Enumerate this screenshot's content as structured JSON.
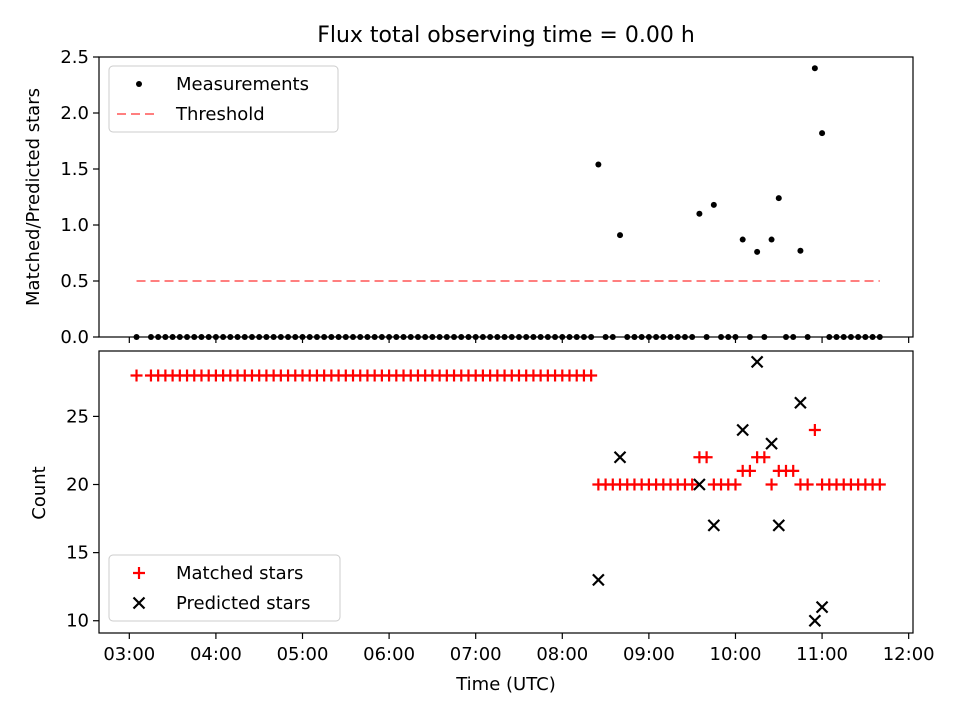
{
  "chart_data": [
    {
      "type": "scatter",
      "title": "Flux total observing time = 0.00 h",
      "xlabel": "",
      "ylabel": "Matched/Predicted stars",
      "xlim": [
        "02:39",
        "12:03"
      ],
      "ylim": [
        0,
        2.5
      ],
      "yticks": [
        "0.0",
        "0.5",
        "1.0",
        "1.5",
        "2.0",
        "2.5"
      ],
      "xtick_labels_visible": false,
      "legend": {
        "placement": "top-left",
        "entries": [
          "Measurements",
          "Threshold"
        ]
      },
      "threshold": {
        "name": "Threshold",
        "value": 0.5,
        "x_range": [
          "03:05",
          "11:40"
        ],
        "color": "#ff7f7f",
        "style": "dashed"
      },
      "series": [
        {
          "name": "Measurements",
          "color": "#000000",
          "marker": "dot",
          "points": [
            [
              "03:05",
              0
            ],
            [
              "03:15",
              0
            ],
            [
              "03:20",
              0
            ],
            [
              "03:25",
              0
            ],
            [
              "03:30",
              0
            ],
            [
              "03:35",
              0
            ],
            [
              "03:40",
              0
            ],
            [
              "03:45",
              0
            ],
            [
              "03:50",
              0
            ],
            [
              "03:55",
              0
            ],
            [
              "04:00",
              0
            ],
            [
              "04:05",
              0
            ],
            [
              "04:10",
              0
            ],
            [
              "04:15",
              0
            ],
            [
              "04:20",
              0
            ],
            [
              "04:25",
              0
            ],
            [
              "04:30",
              0
            ],
            [
              "04:35",
              0
            ],
            [
              "04:40",
              0
            ],
            [
              "04:45",
              0
            ],
            [
              "04:50",
              0
            ],
            [
              "04:55",
              0
            ],
            [
              "05:00",
              0
            ],
            [
              "05:05",
              0
            ],
            [
              "05:10",
              0
            ],
            [
              "05:15",
              0
            ],
            [
              "05:20",
              0
            ],
            [
              "05:25",
              0
            ],
            [
              "05:30",
              0
            ],
            [
              "05:35",
              0
            ],
            [
              "05:40",
              0
            ],
            [
              "05:45",
              0
            ],
            [
              "05:50",
              0
            ],
            [
              "05:55",
              0
            ],
            [
              "06:00",
              0
            ],
            [
              "06:05",
              0
            ],
            [
              "06:10",
              0
            ],
            [
              "06:15",
              0
            ],
            [
              "06:20",
              0
            ],
            [
              "06:25",
              0
            ],
            [
              "06:30",
              0
            ],
            [
              "06:35",
              0
            ],
            [
              "06:40",
              0
            ],
            [
              "06:45",
              0
            ],
            [
              "06:50",
              0
            ],
            [
              "06:55",
              0
            ],
            [
              "07:00",
              0
            ],
            [
              "07:05",
              0
            ],
            [
              "07:10",
              0
            ],
            [
              "07:15",
              0
            ],
            [
              "07:20",
              0
            ],
            [
              "07:25",
              0
            ],
            [
              "07:30",
              0
            ],
            [
              "07:35",
              0
            ],
            [
              "07:40",
              0
            ],
            [
              "07:45",
              0
            ],
            [
              "07:50",
              0
            ],
            [
              "07:55",
              0
            ],
            [
              "08:00",
              0
            ],
            [
              "08:05",
              0
            ],
            [
              "08:10",
              0
            ],
            [
              "08:15",
              0
            ],
            [
              "08:20",
              0
            ],
            [
              "08:25",
              1.54
            ],
            [
              "08:30",
              0
            ],
            [
              "08:35",
              0
            ],
            [
              "08:40",
              0.91
            ],
            [
              "08:45",
              0
            ],
            [
              "08:50",
              0
            ],
            [
              "08:55",
              0
            ],
            [
              "09:00",
              0
            ],
            [
              "09:05",
              0
            ],
            [
              "09:10",
              0
            ],
            [
              "09:15",
              0
            ],
            [
              "09:20",
              0
            ],
            [
              "09:25",
              0
            ],
            [
              "09:30",
              0
            ],
            [
              "09:35",
              1.1
            ],
            [
              "09:40",
              0
            ],
            [
              "09:45",
              1.18
            ],
            [
              "09:50",
              0
            ],
            [
              "09:55",
              0
            ],
            [
              "10:00",
              0
            ],
            [
              "10:05",
              0.87
            ],
            [
              "10:10",
              0
            ],
            [
              "10:15",
              0.76
            ],
            [
              "10:20",
              0
            ],
            [
              "10:25",
              0.87
            ],
            [
              "10:30",
              1.24
            ],
            [
              "10:35",
              0
            ],
            [
              "10:40",
              0
            ],
            [
              "10:45",
              0.77
            ],
            [
              "10:50",
              0
            ],
            [
              "10:55",
              2.4
            ],
            [
              "11:00",
              1.82
            ],
            [
              "11:05",
              0
            ],
            [
              "11:10",
              0
            ],
            [
              "11:15",
              0
            ],
            [
              "11:20",
              0
            ],
            [
              "11:25",
              0
            ],
            [
              "11:30",
              0
            ],
            [
              "11:35",
              0
            ],
            [
              "11:40",
              0
            ]
          ]
        }
      ]
    },
    {
      "type": "scatter",
      "title": "",
      "xlabel": "Time (UTC)",
      "ylabel": "Count",
      "xlim": [
        "02:39",
        "12:03"
      ],
      "ylim": [
        9.1,
        29.8
      ],
      "yticks": [
        "10",
        "15",
        "20",
        "25"
      ],
      "xticks": [
        "03:00",
        "04:00",
        "05:00",
        "06:00",
        "07:00",
        "08:00",
        "09:00",
        "10:00",
        "11:00",
        "12:00"
      ],
      "legend": {
        "placement": "bottom-left",
        "entries": [
          "Matched stars",
          "Predicted stars"
        ]
      },
      "series": [
        {
          "name": "Matched stars",
          "color": "#ff0000",
          "marker": "plus",
          "points": [
            [
              "03:05",
              28
            ],
            [
              "03:15",
              28
            ],
            [
              "03:20",
              28
            ],
            [
              "03:25",
              28
            ],
            [
              "03:30",
              28
            ],
            [
              "03:35",
              28
            ],
            [
              "03:40",
              28
            ],
            [
              "03:45",
              28
            ],
            [
              "03:50",
              28
            ],
            [
              "03:55",
              28
            ],
            [
              "04:00",
              28
            ],
            [
              "04:05",
              28
            ],
            [
              "04:10",
              28
            ],
            [
              "04:15",
              28
            ],
            [
              "04:20",
              28
            ],
            [
              "04:25",
              28
            ],
            [
              "04:30",
              28
            ],
            [
              "04:35",
              28
            ],
            [
              "04:40",
              28
            ],
            [
              "04:45",
              28
            ],
            [
              "04:50",
              28
            ],
            [
              "04:55",
              28
            ],
            [
              "05:00",
              28
            ],
            [
              "05:05",
              28
            ],
            [
              "05:10",
              28
            ],
            [
              "05:15",
              28
            ],
            [
              "05:20",
              28
            ],
            [
              "05:25",
              28
            ],
            [
              "05:30",
              28
            ],
            [
              "05:35",
              28
            ],
            [
              "05:40",
              28
            ],
            [
              "05:45",
              28
            ],
            [
              "05:50",
              28
            ],
            [
              "05:55",
              28
            ],
            [
              "06:00",
              28
            ],
            [
              "06:05",
              28
            ],
            [
              "06:10",
              28
            ],
            [
              "06:15",
              28
            ],
            [
              "06:20",
              28
            ],
            [
              "06:25",
              28
            ],
            [
              "06:30",
              28
            ],
            [
              "06:35",
              28
            ],
            [
              "06:40",
              28
            ],
            [
              "06:45",
              28
            ],
            [
              "06:50",
              28
            ],
            [
              "06:55",
              28
            ],
            [
              "07:00",
              28
            ],
            [
              "07:05",
              28
            ],
            [
              "07:10",
              28
            ],
            [
              "07:15",
              28
            ],
            [
              "07:20",
              28
            ],
            [
              "07:25",
              28
            ],
            [
              "07:30",
              28
            ],
            [
              "07:35",
              28
            ],
            [
              "07:40",
              28
            ],
            [
              "07:45",
              28
            ],
            [
              "07:50",
              28
            ],
            [
              "07:55",
              28
            ],
            [
              "08:00",
              28
            ],
            [
              "08:05",
              28
            ],
            [
              "08:10",
              28
            ],
            [
              "08:15",
              28
            ],
            [
              "08:20",
              28
            ],
            [
              "08:25",
              20
            ],
            [
              "08:30",
              20
            ],
            [
              "08:35",
              20
            ],
            [
              "08:40",
              20
            ],
            [
              "08:45",
              20
            ],
            [
              "08:50",
              20
            ],
            [
              "08:55",
              20
            ],
            [
              "09:00",
              20
            ],
            [
              "09:05",
              20
            ],
            [
              "09:10",
              20
            ],
            [
              "09:15",
              20
            ],
            [
              "09:20",
              20
            ],
            [
              "09:25",
              20
            ],
            [
              "09:30",
              20
            ],
            [
              "09:35",
              22
            ],
            [
              "09:40",
              22
            ],
            [
              "09:45",
              20
            ],
            [
              "09:50",
              20
            ],
            [
              "09:55",
              20
            ],
            [
              "10:00",
              20
            ],
            [
              "10:05",
              21
            ],
            [
              "10:10",
              21
            ],
            [
              "10:15",
              22
            ],
            [
              "10:20",
              22
            ],
            [
              "10:25",
              20
            ],
            [
              "10:30",
              21
            ],
            [
              "10:35",
              21
            ],
            [
              "10:40",
              21
            ],
            [
              "10:45",
              20
            ],
            [
              "10:50",
              20
            ],
            [
              "10:55",
              24
            ],
            [
              "11:00",
              20
            ],
            [
              "11:05",
              20
            ],
            [
              "11:10",
              20
            ],
            [
              "11:15",
              20
            ],
            [
              "11:20",
              20
            ],
            [
              "11:25",
              20
            ],
            [
              "11:30",
              20
            ],
            [
              "11:35",
              20
            ],
            [
              "11:40",
              20
            ]
          ]
        },
        {
          "name": "Predicted stars",
          "color": "#000000",
          "marker": "x",
          "points": [
            [
              "08:25",
              13
            ],
            [
              "08:40",
              22
            ],
            [
              "09:35",
              20
            ],
            [
              "09:45",
              17
            ],
            [
              "10:05",
              24
            ],
            [
              "10:15",
              29
            ],
            [
              "10:25",
              23
            ],
            [
              "10:30",
              17
            ],
            [
              "10:45",
              26
            ],
            [
              "10:55",
              10
            ],
            [
              "11:00",
              11
            ]
          ]
        }
      ]
    }
  ]
}
